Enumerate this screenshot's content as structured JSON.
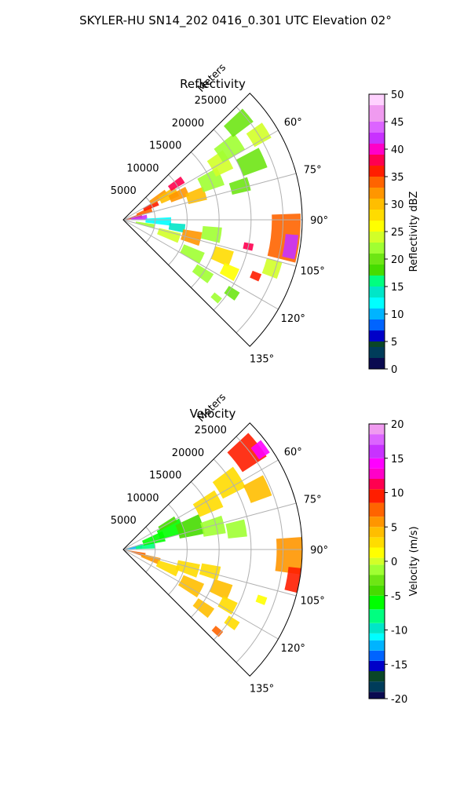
{
  "figure": {
    "title": "SKYLER-HU  SN14_202  0416_0.301 UTC Elevation 02°"
  },
  "chart_data": [
    {
      "type": "heatmap",
      "projection": "polar-sector",
      "title": "Reflectivity",
      "range_label": "Meters",
      "range_ticks": [
        5000,
        10000,
        15000,
        20000,
        25000
      ],
      "range_max": 28000,
      "azimuth_ticks": [
        "60°",
        "75°",
        "90°",
        "105°",
        "120°",
        "135°"
      ],
      "azimuth_range_deg": [
        45,
        135
      ],
      "grid": true,
      "colorbar": {
        "label": "Reflectivity dBZ",
        "min": 0,
        "max": 50,
        "ticks": [
          0,
          5,
          10,
          15,
          20,
          25,
          30,
          35,
          40,
          45,
          50
        ],
        "stops": [
          [
            0,
            "#0a0a50"
          ],
          [
            2,
            "#003c5a"
          ],
          [
            4,
            "#0a4628"
          ],
          [
            5,
            "#0000c8"
          ],
          [
            7,
            "#0064ff"
          ],
          [
            9,
            "#00b4ff"
          ],
          [
            11,
            "#00ffff"
          ],
          [
            13,
            "#00e6c8"
          ],
          [
            15,
            "#00ff80"
          ],
          [
            17,
            "#46dc00"
          ],
          [
            19,
            "#6ee614"
          ],
          [
            21,
            "#a0ff32"
          ],
          [
            23,
            "#d2ff28"
          ],
          [
            25,
            "#ffff00"
          ],
          [
            27,
            "#ffdc00"
          ],
          [
            29,
            "#ffbe00"
          ],
          [
            31,
            "#ff9600"
          ],
          [
            33,
            "#ff6400"
          ],
          [
            35,
            "#ff1e00"
          ],
          [
            37,
            "#ff0050"
          ],
          [
            39,
            "#ff00c8"
          ],
          [
            41,
            "#c832ff"
          ],
          [
            43,
            "#dc64ff"
          ],
          [
            45,
            "#f09bf0"
          ],
          [
            48,
            "#ffd2ff"
          ],
          [
            50,
            "#ffe6ff"
          ]
        ]
      },
      "cells": [
        {
          "r": 1500,
          "az": 78,
          "dr": 3000,
          "daz": 14,
          "v": 35
        },
        {
          "r": 2500,
          "az": 84,
          "dr": 2500,
          "daz": 12,
          "v": 41
        },
        {
          "r": 3500,
          "az": 70,
          "dr": 2500,
          "daz": 10,
          "v": 33
        },
        {
          "r": 4800,
          "az": 64,
          "dr": 2500,
          "daz": 8,
          "v": 36
        },
        {
          "r": 6500,
          "az": 58,
          "dr": 3000,
          "daz": 8,
          "v": 32
        },
        {
          "r": 8000,
          "az": 62,
          "dr": 3000,
          "daz": 10,
          "v": 30
        },
        {
          "r": 10000,
          "az": 56,
          "dr": 2500,
          "daz": 6,
          "v": 37
        },
        {
          "r": 9500,
          "az": 66,
          "dr": 3000,
          "daz": 8,
          "v": 31
        },
        {
          "r": 12000,
          "az": 72,
          "dr": 3000,
          "daz": 9,
          "v": 29
        },
        {
          "r": 15000,
          "az": 66,
          "dr": 3500,
          "daz": 10,
          "v": 22
        },
        {
          "r": 17500,
          "az": 60,
          "dr": 3000,
          "daz": 10,
          "v": 24
        },
        {
          "r": 20000,
          "az": 56,
          "dr": 4000,
          "daz": 8,
          "v": 21
        },
        {
          "r": 23500,
          "az": 50,
          "dr": 4000,
          "daz": 6,
          "v": 20
        },
        {
          "r": 25000,
          "az": 58,
          "dr": 3000,
          "daz": 6,
          "v": 23
        },
        {
          "r": 22000,
          "az": 66,
          "dr": 4000,
          "daz": 8,
          "v": 20
        },
        {
          "r": 19000,
          "az": 74,
          "dr": 3000,
          "daz": 6,
          "v": 19
        },
        {
          "r": 25500,
          "az": 96,
          "dr": 4500,
          "daz": 16,
          "v": 34
        },
        {
          "r": 26500,
          "az": 99,
          "dr": 2000,
          "daz": 8,
          "v": 42
        },
        {
          "r": 24500,
          "az": 108,
          "dr": 2500,
          "daz": 6,
          "v": 24
        },
        {
          "r": 20000,
          "az": 102,
          "dr": 1500,
          "daz": 3,
          "v": 37
        },
        {
          "r": 5500,
          "az": 92,
          "dr": 4000,
          "daz": 10,
          "v": 12
        },
        {
          "r": 8500,
          "az": 98,
          "dr": 2500,
          "daz": 8,
          "v": 14
        },
        {
          "r": 3500,
          "az": 102,
          "dr": 3000,
          "daz": 8,
          "v": 22
        },
        {
          "r": 7500,
          "az": 108,
          "dr": 3500,
          "daz": 10,
          "v": 24
        },
        {
          "r": 11000,
          "az": 104,
          "dr": 3000,
          "daz": 10,
          "v": 31
        },
        {
          "r": 14000,
          "az": 99,
          "dr": 3000,
          "daz": 9,
          "v": 22
        },
        {
          "r": 12000,
          "az": 116,
          "dr": 3500,
          "daz": 8,
          "v": 22
        },
        {
          "r": 16500,
          "az": 110,
          "dr": 3000,
          "daz": 8,
          "v": 28
        },
        {
          "r": 18500,
          "az": 116,
          "dr": 2500,
          "daz": 6,
          "v": 26
        },
        {
          "r": 15000,
          "az": 124,
          "dr": 3000,
          "daz": 6,
          "v": 22
        },
        {
          "r": 20500,
          "az": 124,
          "dr": 2000,
          "daz": 4,
          "v": 20
        },
        {
          "r": 22500,
          "az": 113,
          "dr": 1500,
          "daz": 3,
          "v": 36
        },
        {
          "r": 19000,
          "az": 130,
          "dr": 1500,
          "daz": 3,
          "v": 22
        }
      ]
    },
    {
      "type": "heatmap",
      "projection": "polar-sector",
      "title": "Velocity",
      "range_label": "Meters",
      "range_ticks": [
        5000,
        10000,
        15000,
        20000,
        25000
      ],
      "range_max": 28000,
      "azimuth_ticks": [
        "60°",
        "75°",
        "90°",
        "105°",
        "120°",
        "135°"
      ],
      "azimuth_range_deg": [
        45,
        135
      ],
      "grid": true,
      "colorbar": {
        "label": "Velocity (m/s)",
        "min": -20,
        "max": 20,
        "ticks": [
          -20,
          -15,
          -10,
          -5,
          0,
          5,
          10,
          15,
          20
        ],
        "stops": [
          [
            -20,
            "#0a0a50"
          ],
          [
            -19,
            "#003c5a"
          ],
          [
            -17.5,
            "#0a4628"
          ],
          [
            -16,
            "#0000c8"
          ],
          [
            -14.5,
            "#0064ff"
          ],
          [
            -13,
            "#00b4ff"
          ],
          [
            -11.5,
            "#00ffff"
          ],
          [
            -10.5,
            "#00e6c8"
          ],
          [
            -9,
            "#00ff80"
          ],
          [
            -7,
            "#00ff00"
          ],
          [
            -5,
            "#46dc00"
          ],
          [
            -3.5,
            "#6ee614"
          ],
          [
            -2,
            "#a0ff32"
          ],
          [
            -0.5,
            "#d2ff28"
          ],
          [
            0.5,
            "#ffff00"
          ],
          [
            2,
            "#ffdc00"
          ],
          [
            3.5,
            "#ffbe00"
          ],
          [
            5,
            "#ff9600"
          ],
          [
            6.5,
            "#ff6400"
          ],
          [
            8.5,
            "#ff1e00"
          ],
          [
            10.5,
            "#ff0050"
          ],
          [
            12,
            "#ff00c8"
          ],
          [
            13.5,
            "#ff00ff"
          ],
          [
            15,
            "#c832ff"
          ],
          [
            17,
            "#dc64ff"
          ],
          [
            18.5,
            "#f09bf0"
          ],
          [
            20,
            "#ffe6ff"
          ]
        ]
      },
      "cells": [
        {
          "r": 1500,
          "az": 80,
          "dr": 3000,
          "daz": 14,
          "v": -12
        },
        {
          "r": 3500,
          "az": 82,
          "dr": 3000,
          "daz": 12,
          "v": -9
        },
        {
          "r": 5000,
          "az": 72,
          "dr": 3500,
          "daz": 14,
          "v": -7
        },
        {
          "r": 8000,
          "az": 68,
          "dr": 4000,
          "daz": 14,
          "v": -6
        },
        {
          "r": 11000,
          "az": 72,
          "dr": 4000,
          "daz": 14,
          "v": -4
        },
        {
          "r": 14500,
          "az": 76,
          "dr": 3500,
          "daz": 10,
          "v": -2
        },
        {
          "r": 18000,
          "az": 80,
          "dr": 3000,
          "daz": 8,
          "v": -1
        },
        {
          "r": 8000,
          "az": 60,
          "dr": 3000,
          "daz": 6,
          "v": -5
        },
        {
          "r": 15000,
          "az": 62,
          "dr": 4000,
          "daz": 10,
          "v": 2
        },
        {
          "r": 19500,
          "az": 58,
          "dr": 4000,
          "daz": 10,
          "v": 3
        },
        {
          "r": 24500,
          "az": 52,
          "dr": 4500,
          "daz": 10,
          "v": 9
        },
        {
          "r": 26500,
          "az": 54,
          "dr": 2000,
          "daz": 5,
          "v": 14
        },
        {
          "r": 23000,
          "az": 66,
          "dr": 3500,
          "daz": 8,
          "v": 4
        },
        {
          "r": 26000,
          "az": 92,
          "dr": 4000,
          "daz": 12,
          "v": 6
        },
        {
          "r": 27000,
          "az": 100,
          "dr": 2000,
          "daz": 8,
          "v": 9
        },
        {
          "r": 1800,
          "az": 104,
          "dr": 3500,
          "daz": 10,
          "v": 8
        },
        {
          "r": 4500,
          "az": 108,
          "dr": 3000,
          "daz": 10,
          "v": 5
        },
        {
          "r": 7500,
          "az": 112,
          "dr": 3500,
          "daz": 10,
          "v": 3
        },
        {
          "r": 10500,
          "az": 106,
          "dr": 3500,
          "daz": 10,
          "v": 2
        },
        {
          "r": 14000,
          "az": 104,
          "dr": 3000,
          "daz": 8,
          "v": 3
        },
        {
          "r": 12000,
          "az": 118,
          "dr": 3500,
          "daz": 10,
          "v": 4
        },
        {
          "r": 16500,
          "az": 112,
          "dr": 3000,
          "daz": 8,
          "v": 4
        },
        {
          "r": 18500,
          "az": 118,
          "dr": 2500,
          "daz": 6,
          "v": 3
        },
        {
          "r": 15500,
          "az": 126,
          "dr": 3000,
          "daz": 6,
          "v": 4
        },
        {
          "r": 20500,
          "az": 124,
          "dr": 2000,
          "daz": 4,
          "v": 2
        },
        {
          "r": 19500,
          "az": 131,
          "dr": 1500,
          "daz": 3,
          "v": 8
        },
        {
          "r": 23000,
          "az": 110,
          "dr": 1500,
          "daz": 3,
          "v": 1
        }
      ]
    }
  ]
}
